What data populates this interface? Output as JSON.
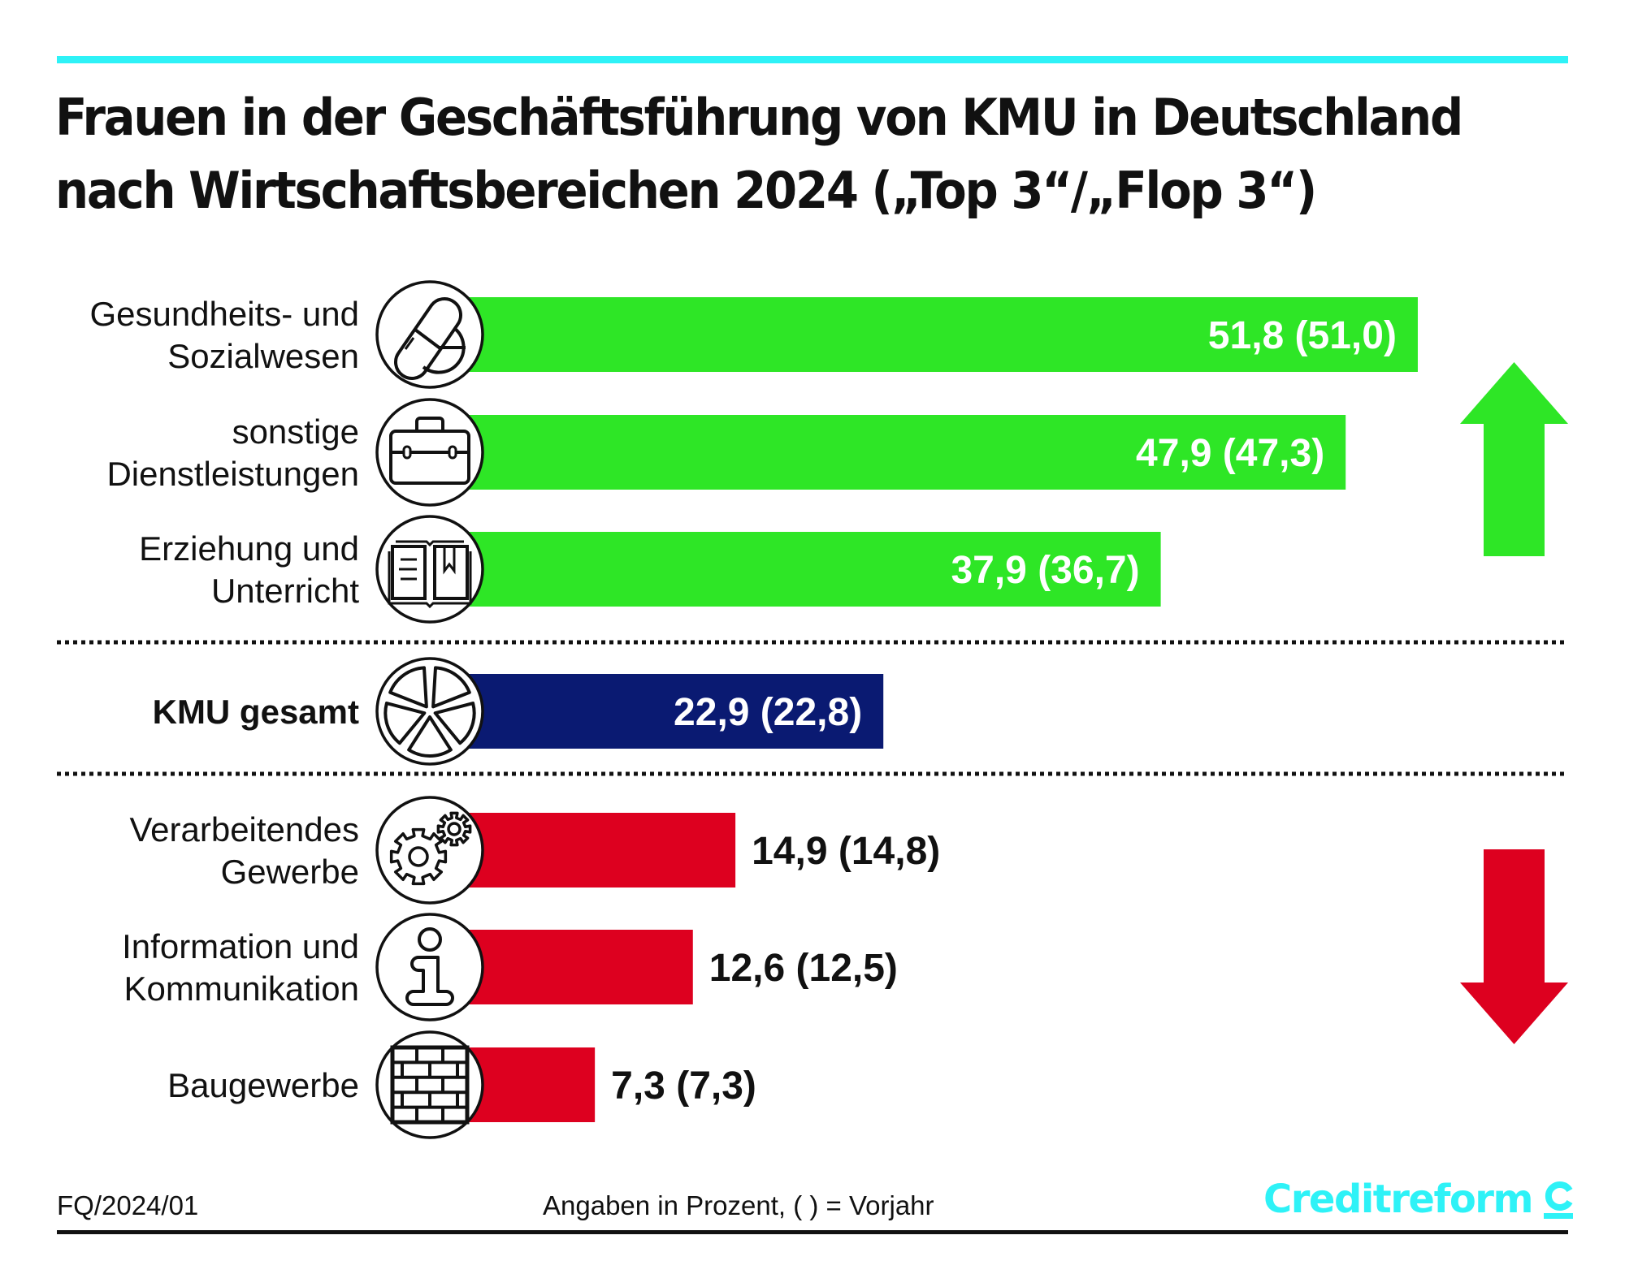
{
  "header": {
    "title_line1": "Frauen in der Geschäftsführung von KMU in Deutschland",
    "title_line2": "nach Wirtschaftsbereichen 2024 („Top 3“/„Flop 3“)",
    "accent_color": "#2ef2f7"
  },
  "footer": {
    "code": "FQ/2024/01",
    "note": "Angaben in Prozent, ( ) = Vorjahr",
    "brand": "Creditreform",
    "brand_color": "#2ef2f7"
  },
  "chart_data": {
    "type": "bar",
    "orientation": "horizontal",
    "title": "Frauen in der Geschäftsführung von KMU in Deutschland nach Wirtschaftsbereichen 2024 („Top 3“/„Flop 3“)",
    "unit": "Prozent",
    "note": "Angaben in Prozent, ( ) = Vorjahr",
    "xlim": [
      0,
      55
    ],
    "grid": false,
    "legend": "none",
    "groups": [
      {
        "name": "Top 3",
        "color": "#2ee626",
        "trend": "up"
      },
      {
        "name": "Gesamt",
        "color": "#0a1a72",
        "trend": "none"
      },
      {
        "name": "Flop 3",
        "color": "#dd001f",
        "trend": "down"
      }
    ],
    "categories": [
      {
        "label_lines": [
          "Gesundheits- und",
          "Sozialwesen"
        ],
        "icon": "pills-icon",
        "group": "Top 3",
        "value": 51.8,
        "previous": 51.0,
        "value_label": "51,8 (51,0)",
        "bold_label": false
      },
      {
        "label_lines": [
          "sonstige",
          "Dienstleistungen"
        ],
        "icon": "briefcase-icon",
        "group": "Top 3",
        "value": 47.9,
        "previous": 47.3,
        "value_label": "47,9 (47,3)",
        "bold_label": false
      },
      {
        "label_lines": [
          "Erziehung und",
          "Unterricht"
        ],
        "icon": "open-book-icon",
        "group": "Top 3",
        "value": 37.9,
        "previous": 36.7,
        "value_label": "37,9 (36,7)",
        "bold_label": false
      },
      {
        "label_lines": [
          "KMU gesamt"
        ],
        "icon": "pie-chart-icon",
        "group": "Gesamt",
        "value": 22.9,
        "previous": 22.8,
        "value_label": "22,9 (22,8)",
        "bold_label": true
      },
      {
        "label_lines": [
          "Verarbeitendes",
          "Gewerbe"
        ],
        "icon": "gears-icon",
        "group": "Flop 3",
        "value": 14.9,
        "previous": 14.8,
        "value_label": "14,9 (14,8)",
        "bold_label": false
      },
      {
        "label_lines": [
          "Information und",
          "Kommunikation"
        ],
        "icon": "info-icon",
        "group": "Flop 3",
        "value": 12.6,
        "previous": 12.5,
        "value_label": "12,6 (12,5)",
        "bold_label": false
      },
      {
        "label_lines": [
          "Baugewerbe"
        ],
        "icon": "brick-wall-icon",
        "group": "Flop 3",
        "value": 7.3,
        "previous": 7.3,
        "value_label": "7,3 (7,3)",
        "bold_label": false
      }
    ]
  }
}
